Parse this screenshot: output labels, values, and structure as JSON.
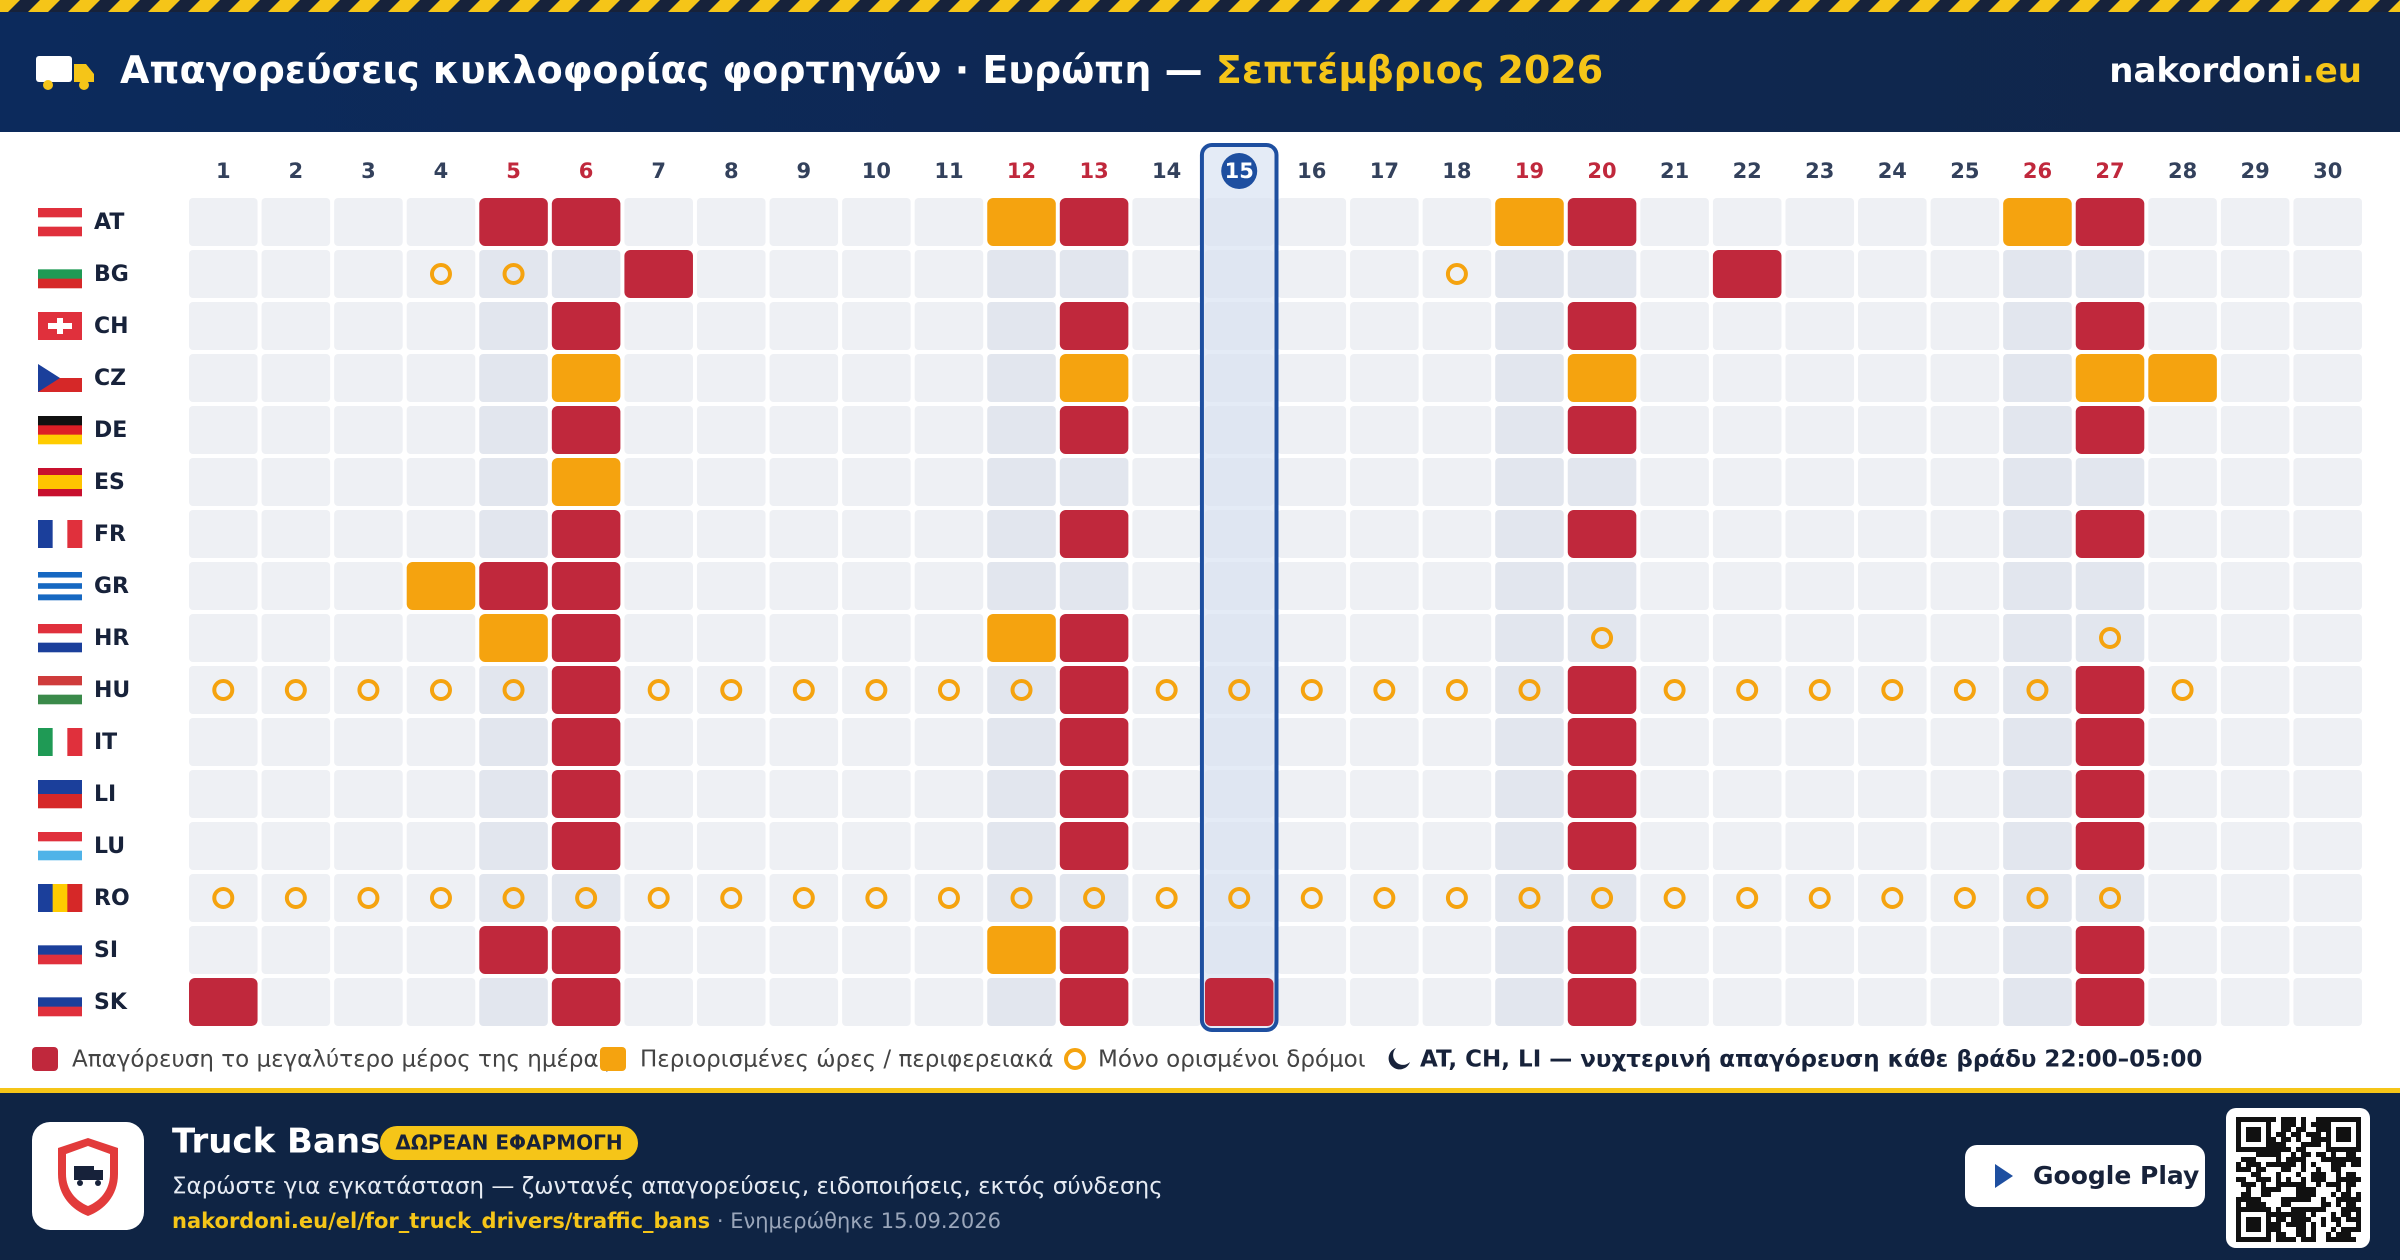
{
  "header": {
    "title": "Απαγορεύσεις κυκλοφορίας φορτηγών · Ευρώπη —",
    "month": "Σεπτέμβριος 2026",
    "brand": "nakordoni",
    "brand_tld": ".eu"
  },
  "calendar": {
    "days": [
      1,
      2,
      3,
      4,
      5,
      6,
      7,
      8,
      9,
      10,
      11,
      12,
      13,
      14,
      15,
      16,
      17,
      18,
      19,
      20,
      21,
      22,
      23,
      24,
      25,
      26,
      27,
      28,
      29,
      30
    ],
    "weekend_days": [
      5,
      6,
      12,
      13,
      19,
      20,
      26,
      27
    ],
    "today": 15,
    "rows": [
      {
        "code": "AT",
        "cells": [
          null,
          null,
          null,
          null,
          "f",
          "f",
          null,
          null,
          null,
          null,
          null,
          "p",
          "f",
          null,
          null,
          null,
          null,
          null,
          "p",
          "f",
          null,
          null,
          null,
          null,
          null,
          "p",
          "f",
          null,
          null,
          null
        ]
      },
      {
        "code": "BG",
        "cells": [
          null,
          null,
          null,
          "r",
          "r",
          null,
          "f",
          null,
          null,
          null,
          null,
          null,
          null,
          null,
          null,
          null,
          null,
          "r",
          null,
          null,
          null,
          "f",
          null,
          null,
          null,
          null,
          null,
          null,
          null,
          null
        ]
      },
      {
        "code": "CH",
        "cells": [
          null,
          null,
          null,
          null,
          null,
          "f",
          null,
          null,
          null,
          null,
          null,
          null,
          "f",
          null,
          null,
          null,
          null,
          null,
          null,
          "f",
          null,
          null,
          null,
          null,
          null,
          null,
          "f",
          null,
          null,
          null
        ]
      },
      {
        "code": "CZ",
        "cells": [
          null,
          null,
          null,
          null,
          null,
          "p",
          null,
          null,
          null,
          null,
          null,
          null,
          "p",
          null,
          null,
          null,
          null,
          null,
          null,
          "p",
          null,
          null,
          null,
          null,
          null,
          null,
          "p",
          "p",
          null,
          null
        ]
      },
      {
        "code": "DE",
        "cells": [
          null,
          null,
          null,
          null,
          null,
          "f",
          null,
          null,
          null,
          null,
          null,
          null,
          "f",
          null,
          null,
          null,
          null,
          null,
          null,
          "f",
          null,
          null,
          null,
          null,
          null,
          null,
          "f",
          null,
          null,
          null
        ]
      },
      {
        "code": "ES",
        "cells": [
          null,
          null,
          null,
          null,
          null,
          "p",
          null,
          null,
          null,
          null,
          null,
          null,
          null,
          null,
          null,
          null,
          null,
          null,
          null,
          null,
          null,
          null,
          null,
          null,
          null,
          null,
          null,
          null,
          null,
          null
        ]
      },
      {
        "code": "FR",
        "cells": [
          null,
          null,
          null,
          null,
          null,
          "f",
          null,
          null,
          null,
          null,
          null,
          null,
          "f",
          null,
          null,
          null,
          null,
          null,
          null,
          "f",
          null,
          null,
          null,
          null,
          null,
          null,
          "f",
          null,
          null,
          null
        ]
      },
      {
        "code": "GR",
        "cells": [
          null,
          null,
          null,
          "p",
          "f",
          "f",
          null,
          null,
          null,
          null,
          null,
          null,
          null,
          null,
          null,
          null,
          null,
          null,
          null,
          null,
          null,
          null,
          null,
          null,
          null,
          null,
          null,
          null,
          null,
          null
        ]
      },
      {
        "code": "HR",
        "cells": [
          null,
          null,
          null,
          null,
          "p",
          "f",
          null,
          null,
          null,
          null,
          null,
          "p",
          "f",
          null,
          null,
          null,
          null,
          null,
          null,
          "r",
          null,
          null,
          null,
          null,
          null,
          null,
          "r",
          null,
          null,
          null
        ]
      },
      {
        "code": "HU",
        "cells": [
          "r",
          "r",
          "r",
          "r",
          "r",
          "f",
          "r",
          "r",
          "r",
          "r",
          "r",
          "r",
          "f",
          "r",
          "r",
          "r",
          "r",
          "r",
          "r",
          "f",
          "r",
          "r",
          "r",
          "r",
          "r",
          "r",
          "f",
          "r",
          null,
          null
        ]
      },
      {
        "code": "IT",
        "cells": [
          null,
          null,
          null,
          null,
          null,
          "f",
          null,
          null,
          null,
          null,
          null,
          null,
          "f",
          null,
          null,
          null,
          null,
          null,
          null,
          "f",
          null,
          null,
          null,
          null,
          null,
          null,
          "f",
          null,
          null,
          null
        ]
      },
      {
        "code": "LI",
        "cells": [
          null,
          null,
          null,
          null,
          null,
          "f",
          null,
          null,
          null,
          null,
          null,
          null,
          "f",
          null,
          null,
          null,
          null,
          null,
          null,
          "f",
          null,
          null,
          null,
          null,
          null,
          null,
          "f",
          null,
          null,
          null
        ]
      },
      {
        "code": "LU",
        "cells": [
          null,
          null,
          null,
          null,
          null,
          "f",
          null,
          null,
          null,
          null,
          null,
          null,
          "f",
          null,
          null,
          null,
          null,
          null,
          null,
          "f",
          null,
          null,
          null,
          null,
          null,
          null,
          "f",
          null,
          null,
          null
        ]
      },
      {
        "code": "RO",
        "cells": [
          "r",
          "r",
          "r",
          "r",
          "r",
          "r",
          "r",
          "r",
          "r",
          "r",
          "r",
          "r",
          "r",
          "r",
          "r",
          "r",
          "r",
          "r",
          "r",
          "r",
          "r",
          "r",
          "r",
          "r",
          "r",
          "r",
          "r",
          null,
          null,
          null
        ]
      },
      {
        "code": "SI",
        "cells": [
          null,
          null,
          null,
          null,
          "f",
          "f",
          null,
          null,
          null,
          null,
          null,
          "p",
          "f",
          null,
          null,
          null,
          null,
          null,
          null,
          "f",
          null,
          null,
          null,
          null,
          null,
          null,
          "f",
          null,
          null,
          null
        ]
      },
      {
        "code": "SK",
        "cells": [
          "f",
          null,
          null,
          null,
          null,
          "f",
          null,
          null,
          null,
          null,
          null,
          null,
          "f",
          null,
          "f",
          null,
          null,
          null,
          null,
          "f",
          null,
          null,
          null,
          null,
          null,
          null,
          "f",
          null,
          null,
          null
        ]
      }
    ]
  },
  "legend": {
    "full": "Απαγόρευση το μεγαλύτερο μέρος της ημέρας",
    "partial": "Περιορισμένες ώρες / περιφερειακά",
    "roads": "Μόνο ορισμένοι δρόμοι",
    "night": "AT, CH, LI — νυχτερινή απαγόρευση κάθε βράδυ 22:00–05:00"
  },
  "footer": {
    "app_name": "Truck Bans",
    "badge": "ΔΩΡΕΑΝ ΕΦΑΡΜΟΓΗ",
    "tagline": "Σαρώστε για εγκατάσταση — ζωντανές απαγορεύσεις, ειδοποιήσεις, εκτός σύνδεσης",
    "link": "nakordoni.eu/el/for_truck_drivers/traffic_bans",
    "updated": " · Ενημερώθηκε 15.09.2026",
    "store_button": "Google Play"
  }
}
